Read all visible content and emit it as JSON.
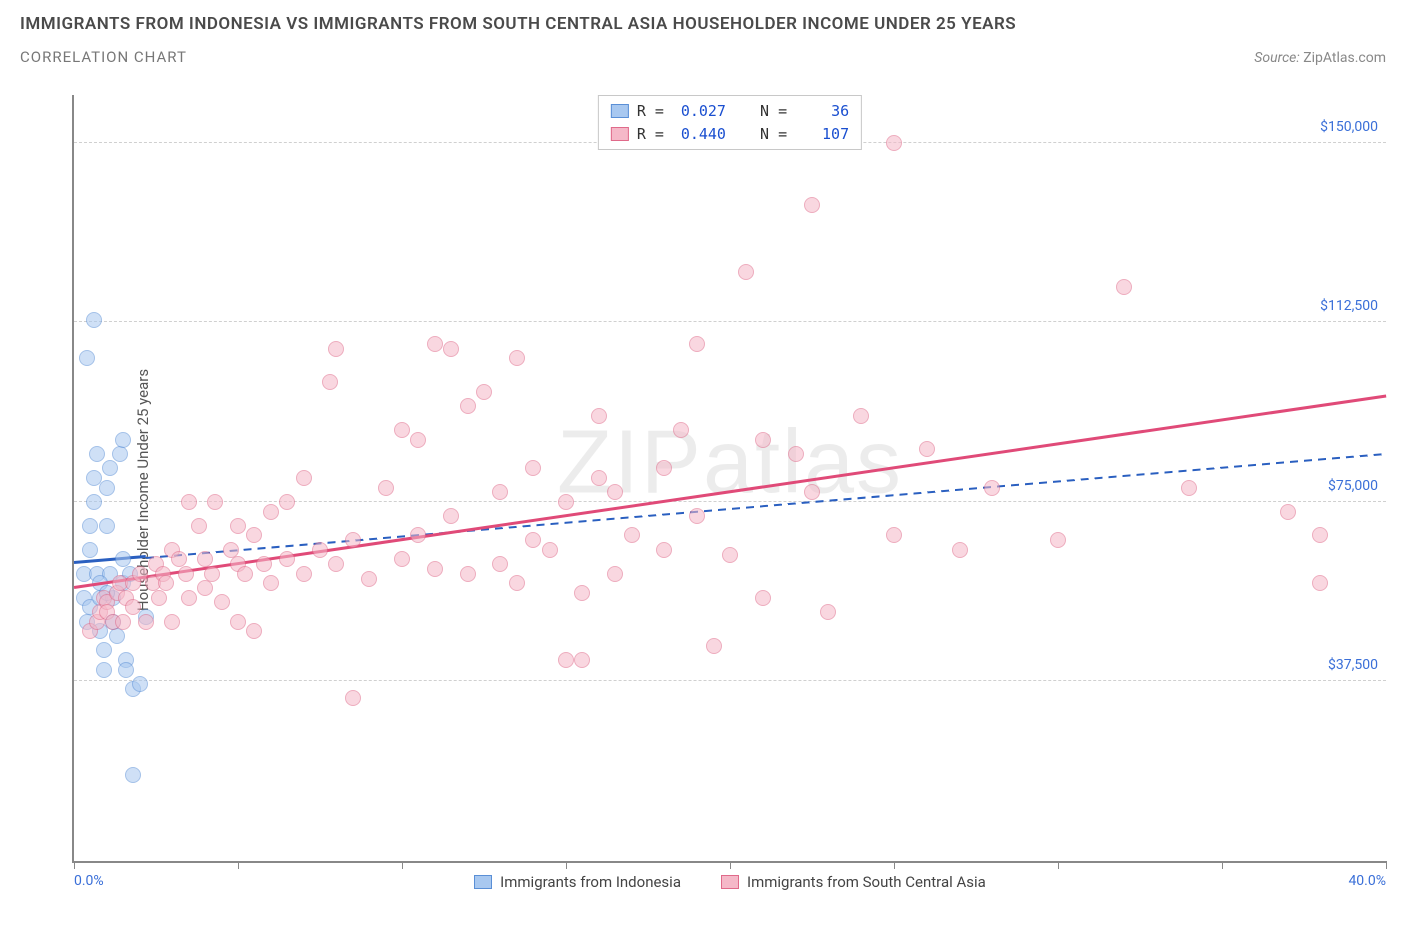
{
  "header": {
    "title": "IMMIGRANTS FROM INDONESIA VS IMMIGRANTS FROM SOUTH CENTRAL ASIA HOUSEHOLDER INCOME UNDER 25 YEARS",
    "subtitle": "CORRELATION CHART",
    "source_label": "Source:",
    "source_name": "ZipAtlas.com"
  },
  "watermark": "ZIPatlas",
  "chart": {
    "type": "scatter",
    "ylabel": "Householder Income Under 25 years",
    "xlim": [
      0,
      40
    ],
    "ylim": [
      0,
      160000
    ],
    "x_ticks_pct": [
      0,
      5,
      10,
      15,
      20,
      25,
      30,
      35,
      40
    ],
    "x_start_label": "0.0%",
    "x_end_label": "40.0%",
    "y_gridlines": [
      {
        "v": 37500,
        "label": "$37,500"
      },
      {
        "v": 75000,
        "label": "$75,000"
      },
      {
        "v": 112500,
        "label": "$112,500"
      },
      {
        "v": 150000,
        "label": "$150,000"
      }
    ],
    "background_color": "#ffffff",
    "grid_color": "#d0d0d0",
    "axis_color": "#888888",
    "point_radius": 8,
    "point_opacity": 0.55,
    "series": [
      {
        "id": "indonesia",
        "label": "Immigrants from Indonesia",
        "fill": "#a8c8f0",
        "stroke": "#5a8fd6",
        "trend_color": "#2a5fc0",
        "trend_dash": "dashed",
        "R": "0.027",
        "N": "36",
        "trend": {
          "x1": 0,
          "y1": 62000,
          "x2": 40,
          "y2": 85000
        },
        "trend_solid_until_x": 2.2,
        "points": [
          [
            0.3,
            60000
          ],
          [
            0.3,
            55000
          ],
          [
            0.4,
            50000
          ],
          [
            0.5,
            53000
          ],
          [
            0.5,
            65000
          ],
          [
            0.5,
            70000
          ],
          [
            0.6,
            75000
          ],
          [
            0.6,
            80000
          ],
          [
            0.7,
            85000
          ],
          [
            0.7,
            60000
          ],
          [
            0.8,
            55000
          ],
          [
            0.8,
            48000
          ],
          [
            0.9,
            44000
          ],
          [
            0.9,
            40000
          ],
          [
            1.0,
            70000
          ],
          [
            1.0,
            78000
          ],
          [
            1.1,
            82000
          ],
          [
            1.1,
            60000
          ],
          [
            1.2,
            55000
          ],
          [
            1.2,
            50000
          ],
          [
            1.3,
            47000
          ],
          [
            1.4,
            85000
          ],
          [
            1.5,
            88000
          ],
          [
            1.5,
            58000
          ],
          [
            1.6,
            42000
          ],
          [
            1.6,
            40000
          ],
          [
            1.8,
            36000
          ],
          [
            1.8,
            18000
          ],
          [
            0.6,
            113000
          ],
          [
            0.4,
            105000
          ],
          [
            2.0,
            37000
          ],
          [
            2.2,
            51000
          ],
          [
            1.5,
            63000
          ],
          [
            1.7,
            60000
          ],
          [
            0.8,
            58000
          ],
          [
            1.0,
            56000
          ]
        ]
      },
      {
        "id": "south_central_asia",
        "label": "Immigrants from South Central Asia",
        "fill": "#f5b8c8",
        "stroke": "#e06a8a",
        "trend_color": "#e04a78",
        "trend_dash": "solid",
        "R": "0.440",
        "N": "107",
        "trend": {
          "x1": 0,
          "y1": 57000,
          "x2": 40,
          "y2": 97000
        },
        "points": [
          [
            0.5,
            48000
          ],
          [
            0.7,
            50000
          ],
          [
            0.8,
            52000
          ],
          [
            0.9,
            55000
          ],
          [
            1.0,
            54000
          ],
          [
            1.0,
            52000
          ],
          [
            1.2,
            50000
          ],
          [
            1.3,
            56000
          ],
          [
            1.4,
            58000
          ],
          [
            1.5,
            50000
          ],
          [
            1.6,
            55000
          ],
          [
            1.8,
            58000
          ],
          [
            1.8,
            53000
          ],
          [
            2.0,
            60000
          ],
          [
            2.2,
            50000
          ],
          [
            2.4,
            58000
          ],
          [
            2.5,
            62000
          ],
          [
            2.6,
            55000
          ],
          [
            2.7,
            60000
          ],
          [
            2.8,
            58000
          ],
          [
            3.0,
            65000
          ],
          [
            3.0,
            50000
          ],
          [
            3.2,
            63000
          ],
          [
            3.4,
            60000
          ],
          [
            3.5,
            55000
          ],
          [
            3.5,
            75000
          ],
          [
            3.8,
            70000
          ],
          [
            4.0,
            57000
          ],
          [
            4.0,
            63000
          ],
          [
            4.2,
            60000
          ],
          [
            4.3,
            75000
          ],
          [
            4.5,
            54000
          ],
          [
            4.8,
            65000
          ],
          [
            5.0,
            62000
          ],
          [
            5.0,
            70000
          ],
          [
            5.2,
            60000
          ],
          [
            5.5,
            68000
          ],
          [
            5.5,
            48000
          ],
          [
            5.8,
            62000
          ],
          [
            6.0,
            58000
          ],
          [
            6.0,
            73000
          ],
          [
            6.5,
            63000
          ],
          [
            6.5,
            75000
          ],
          [
            7.0,
            60000
          ],
          [
            7.0,
            80000
          ],
          [
            7.5,
            65000
          ],
          [
            7.8,
            100000
          ],
          [
            8.0,
            107000
          ],
          [
            8.0,
            62000
          ],
          [
            8.5,
            67000
          ],
          [
            8.5,
            34000
          ],
          [
            9.0,
            59000
          ],
          [
            9.5,
            78000
          ],
          [
            10.0,
            63000
          ],
          [
            10.0,
            90000
          ],
          [
            10.5,
            88000
          ],
          [
            10.5,
            68000
          ],
          [
            11.0,
            61000
          ],
          [
            11.0,
            108000
          ],
          [
            11.5,
            107000
          ],
          [
            11.5,
            72000
          ],
          [
            12.0,
            60000
          ],
          [
            12.0,
            95000
          ],
          [
            12.5,
            98000
          ],
          [
            13.0,
            62000
          ],
          [
            13.0,
            77000
          ],
          [
            13.5,
            105000
          ],
          [
            13.5,
            58000
          ],
          [
            14.0,
            67000
          ],
          [
            14.0,
            82000
          ],
          [
            14.5,
            65000
          ],
          [
            15.0,
            42000
          ],
          [
            15.0,
            75000
          ],
          [
            15.5,
            56000
          ],
          [
            16.0,
            93000
          ],
          [
            16.0,
            80000
          ],
          [
            16.5,
            77000
          ],
          [
            16.5,
            60000
          ],
          [
            17.0,
            68000
          ],
          [
            18.0,
            82000
          ],
          [
            18.0,
            65000
          ],
          [
            18.5,
            90000
          ],
          [
            19.0,
            72000
          ],
          [
            19.0,
            108000
          ],
          [
            19.5,
            45000
          ],
          [
            20.0,
            64000
          ],
          [
            20.5,
            123000
          ],
          [
            21.0,
            55000
          ],
          [
            21.0,
            88000
          ],
          [
            22.0,
            85000
          ],
          [
            22.5,
            77000
          ],
          [
            22.5,
            137000
          ],
          [
            23.0,
            52000
          ],
          [
            24.0,
            93000
          ],
          [
            25.0,
            68000
          ],
          [
            25.0,
            150000
          ],
          [
            26.0,
            86000
          ],
          [
            27.0,
            65000
          ],
          [
            28.0,
            78000
          ],
          [
            30.0,
            67000
          ],
          [
            32.0,
            120000
          ],
          [
            34.0,
            78000
          ],
          [
            37.0,
            73000
          ],
          [
            38.0,
            68000
          ],
          [
            38.0,
            58000
          ],
          [
            5.0,
            50000
          ],
          [
            15.5,
            42000
          ]
        ]
      }
    ],
    "legend_top": {
      "r_label": "R =",
      "n_label": "N ="
    }
  }
}
